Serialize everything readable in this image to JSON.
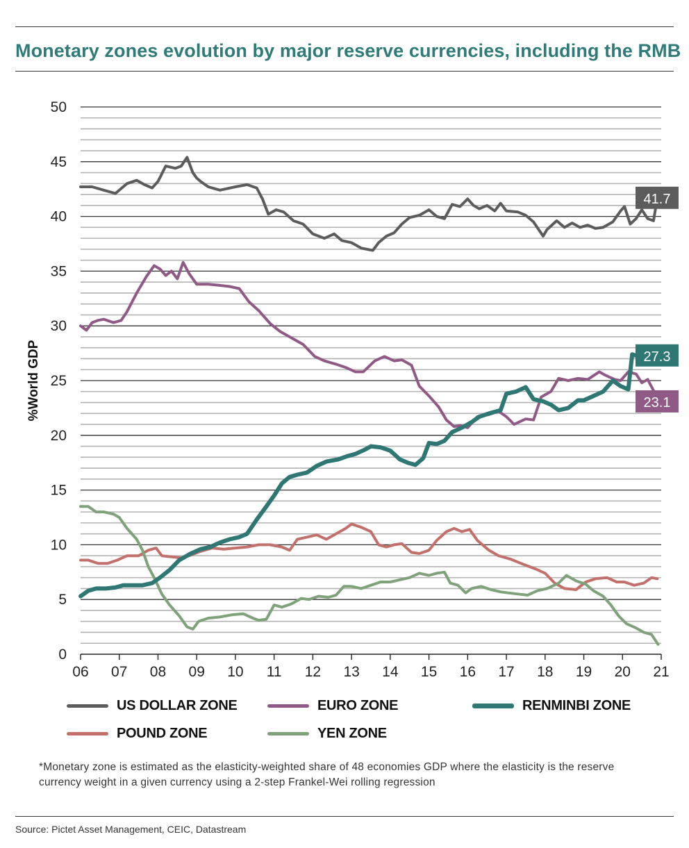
{
  "title": "Monetary zones evolution by major reserve currencies, including the RMB",
  "note": "*Monetary zone is estimated as the elasticity-weighted share of 48 economies GDP where the elasticity is the reserve currency weight in a given currency using a 2-step Frankel-Wei rolling regression",
  "source": "Source: Pictet Asset Management, CEIC, Datastream",
  "legend": [
    {
      "label": "US DOLLAR ZONE",
      "color": "#5c5c5c"
    },
    {
      "label": "EURO ZONE",
      "color": "#8f5a85"
    },
    {
      "label": "RENMINBI ZONE",
      "color": "#2e7773"
    },
    {
      "label": "POUND ZONE",
      "color": "#c2706b"
    },
    {
      "label": "YEN ZONE",
      "color": "#7fa27b"
    }
  ],
  "chart_data": {
    "type": "line",
    "title": "Monetary zones evolution by major reserve currencies, including the RMB",
    "xlabel": "",
    "ylabel": "%World GDP",
    "ylim": [
      0,
      50
    ],
    "xlim": [
      2006,
      2021
    ],
    "y_ticks": [
      "0",
      "5",
      "10",
      "15",
      "20",
      "25",
      "30",
      "35",
      "40",
      "45",
      "50"
    ],
    "x_ticks": [
      "06",
      "07",
      "08",
      "09",
      "10",
      "11",
      "12",
      "13",
      "14",
      "15",
      "16",
      "17",
      "18",
      "19",
      "20",
      "21"
    ],
    "grid": true,
    "series": [
      {
        "name": "US DOLLAR ZONE",
        "color": "#5c5c5c",
        "width": 4,
        "end_label": "41.7",
        "x": [
          2006.0,
          2006.3,
          2006.6,
          2006.9,
          2007.2,
          2007.45,
          2007.65,
          2007.85,
          2008.0,
          2008.2,
          2008.45,
          2008.6,
          2008.75,
          2008.9,
          2009.0,
          2009.1,
          2009.3,
          2009.6,
          2010.0,
          2010.3,
          2010.55,
          2010.7,
          2010.85,
          2011.05,
          2011.25,
          2011.5,
          2011.75,
          2012.0,
          2012.3,
          2012.55,
          2012.75,
          2013.0,
          2013.25,
          2013.55,
          2013.7,
          2013.9,
          2014.1,
          2014.3,
          2014.5,
          2014.75,
          2015.0,
          2015.2,
          2015.4,
          2015.6,
          2015.8,
          2016.0,
          2016.15,
          2016.3,
          2016.5,
          2016.7,
          2016.85,
          2017.0,
          2017.3,
          2017.5,
          2017.7,
          2017.95,
          2018.05,
          2018.3,
          2018.5,
          2018.7,
          2018.9,
          2019.1,
          2019.3,
          2019.5,
          2019.75,
          2019.95,
          2020.05,
          2020.2,
          2020.35,
          2020.5,
          2020.65,
          2020.8,
          2020.9
        ],
        "y": [
          42.7,
          42.7,
          42.4,
          42.1,
          43.0,
          43.3,
          42.9,
          42.6,
          43.2,
          44.6,
          44.4,
          44.6,
          45.4,
          44.0,
          43.5,
          43.2,
          42.7,
          42.4,
          42.7,
          42.9,
          42.6,
          41.6,
          40.2,
          40.6,
          40.4,
          39.6,
          39.3,
          38.4,
          38.0,
          38.4,
          37.8,
          37.6,
          37.1,
          36.9,
          37.6,
          38.2,
          38.5,
          39.3,
          39.9,
          40.1,
          40.6,
          40.0,
          39.8,
          41.1,
          40.9,
          41.6,
          41.0,
          40.7,
          41.0,
          40.5,
          41.2,
          40.5,
          40.4,
          40.1,
          39.5,
          38.2,
          38.8,
          39.6,
          39.0,
          39.4,
          39.0,
          39.2,
          38.9,
          39.0,
          39.5,
          40.5,
          40.9,
          39.3,
          39.8,
          40.6,
          39.8,
          39.6,
          41.7
        ]
      },
      {
        "name": "EURO ZONE",
        "color": "#8f5a85",
        "width": 4,
        "end_label": "23.1",
        "x": [
          2006.0,
          2006.15,
          2006.3,
          2006.45,
          2006.6,
          2006.85,
          2007.05,
          2007.2,
          2007.45,
          2007.7,
          2007.9,
          2008.05,
          2008.2,
          2008.35,
          2008.5,
          2008.65,
          2008.8,
          2009.0,
          2009.3,
          2009.6,
          2009.85,
          2010.1,
          2010.35,
          2010.6,
          2010.9,
          2011.15,
          2011.45,
          2011.75,
          2012.05,
          2012.3,
          2012.6,
          2012.85,
          2013.1,
          2013.3,
          2013.6,
          2013.85,
          2014.1,
          2014.3,
          2014.55,
          2014.75,
          2015.0,
          2015.25,
          2015.45,
          2015.65,
          2015.8,
          2016.0,
          2016.25,
          2016.55,
          2016.8,
          2017.0,
          2017.2,
          2017.5,
          2017.7,
          2017.9,
          2018.15,
          2018.35,
          2018.6,
          2018.85,
          2019.1,
          2019.4,
          2019.55,
          2019.8,
          2019.95,
          2020.15,
          2020.35,
          2020.5,
          2020.65,
          2020.8,
          2020.92
        ],
        "y": [
          30.0,
          29.6,
          30.3,
          30.5,
          30.6,
          30.3,
          30.5,
          31.3,
          33.0,
          34.5,
          35.5,
          35.2,
          34.6,
          35.0,
          34.3,
          35.8,
          34.8,
          33.8,
          33.8,
          33.7,
          33.6,
          33.4,
          32.2,
          31.4,
          30.2,
          29.5,
          28.9,
          28.3,
          27.2,
          26.8,
          26.5,
          26.2,
          25.8,
          25.8,
          26.8,
          27.2,
          26.8,
          26.9,
          26.4,
          24.5,
          23.6,
          22.6,
          21.4,
          20.8,
          20.9,
          20.7,
          21.7,
          21.9,
          22.2,
          21.7,
          21.0,
          21.5,
          21.4,
          23.5,
          24.0,
          25.2,
          25.0,
          25.2,
          25.1,
          25.8,
          25.5,
          25.1,
          25.0,
          25.8,
          25.6,
          24.8,
          25.1,
          24.1,
          23.1
        ]
      },
      {
        "name": "RENMINBI ZONE",
        "color": "#2e7773",
        "width": 6,
        "end_label": "27.3",
        "x": [
          2006.0,
          2006.2,
          2006.4,
          2006.65,
          2006.9,
          2007.1,
          2007.35,
          2007.6,
          2007.85,
          2008.05,
          2008.3,
          2008.55,
          2008.85,
          2009.1,
          2009.35,
          2009.6,
          2009.85,
          2010.1,
          2010.3,
          2010.55,
          2010.8,
          2011.0,
          2011.2,
          2011.4,
          2011.6,
          2011.85,
          2012.1,
          2012.35,
          2012.65,
          2012.9,
          2013.1,
          2013.35,
          2013.5,
          2013.75,
          2014.0,
          2014.25,
          2014.45,
          2014.65,
          2014.85,
          2015.0,
          2015.2,
          2015.4,
          2015.6,
          2015.85,
          2016.1,
          2016.3,
          2016.55,
          2016.85,
          2017.0,
          2017.25,
          2017.5,
          2017.7,
          2017.95,
          2018.15,
          2018.35,
          2018.6,
          2018.85,
          2019.0,
          2019.25,
          2019.5,
          2019.75,
          2019.95,
          2020.15,
          2020.25,
          2020.5,
          2020.7,
          2020.85,
          2020.95
        ],
        "y": [
          5.3,
          5.8,
          6.0,
          6.0,
          6.1,
          6.3,
          6.3,
          6.3,
          6.5,
          7.0,
          7.7,
          8.6,
          9.2,
          9.6,
          9.8,
          10.2,
          10.5,
          10.7,
          11.0,
          12.3,
          13.5,
          14.5,
          15.6,
          16.2,
          16.4,
          16.6,
          17.2,
          17.6,
          17.8,
          18.1,
          18.3,
          18.7,
          19.0,
          18.9,
          18.6,
          17.8,
          17.5,
          17.3,
          17.9,
          19.3,
          19.2,
          19.5,
          20.3,
          20.7,
          21.2,
          21.7,
          22.0,
          22.3,
          23.8,
          24.0,
          24.4,
          23.3,
          23.1,
          22.8,
          22.3,
          22.5,
          23.2,
          23.2,
          23.6,
          24.0,
          25.0,
          24.5,
          24.2,
          27.4,
          27.1,
          27.3,
          27.2,
          27.3
        ]
      },
      {
        "name": "POUND ZONE",
        "color": "#c2706b",
        "width": 4,
        "end_label": "",
        "x": [
          2006.0,
          2006.2,
          2006.45,
          2006.7,
          2006.95,
          2007.2,
          2007.5,
          2007.75,
          2007.95,
          2008.1,
          2008.35,
          2008.6,
          2008.8,
          2009.1,
          2009.4,
          2009.7,
          2010.0,
          2010.3,
          2010.6,
          2010.9,
          2011.2,
          2011.4,
          2011.6,
          2011.85,
          2012.1,
          2012.35,
          2012.6,
          2012.85,
          2013.0,
          2013.25,
          2013.5,
          2013.7,
          2013.9,
          2014.1,
          2014.3,
          2014.55,
          2014.75,
          2015.0,
          2015.2,
          2015.45,
          2015.65,
          2015.85,
          2016.05,
          2016.25,
          2016.55,
          2016.8,
          2017.1,
          2017.45,
          2017.75,
          2018.0,
          2018.25,
          2018.5,
          2018.8,
          2019.05,
          2019.3,
          2019.6,
          2019.85,
          2020.05,
          2020.3,
          2020.55,
          2020.75,
          2020.9
        ],
        "y": [
          8.6,
          8.6,
          8.3,
          8.3,
          8.6,
          9.0,
          9.0,
          9.5,
          9.7,
          9.0,
          8.9,
          8.8,
          9.0,
          9.4,
          9.7,
          9.6,
          9.7,
          9.8,
          10.0,
          10.0,
          9.8,
          9.5,
          10.5,
          10.7,
          10.9,
          10.5,
          11.0,
          11.5,
          11.9,
          11.6,
          11.2,
          10.0,
          9.8,
          10.0,
          10.1,
          9.3,
          9.2,
          9.5,
          10.4,
          11.2,
          11.5,
          11.2,
          11.4,
          10.4,
          9.5,
          9.0,
          8.7,
          8.2,
          7.8,
          7.4,
          6.5,
          6.0,
          5.9,
          6.6,
          6.9,
          7.0,
          6.6,
          6.6,
          6.3,
          6.5,
          7.0,
          6.9
        ]
      },
      {
        "name": "YEN ZONE",
        "color": "#7fa27b",
        "width": 4,
        "end_label": "",
        "x": [
          2006.0,
          2006.2,
          2006.4,
          2006.6,
          2006.85,
          2007.0,
          2007.2,
          2007.45,
          2007.6,
          2007.75,
          2007.9,
          2008.1,
          2008.3,
          2008.55,
          2008.75,
          2008.9,
          2009.05,
          2009.3,
          2009.6,
          2009.9,
          2010.2,
          2010.45,
          2010.6,
          2010.8,
          2011.0,
          2011.2,
          2011.45,
          2011.7,
          2011.9,
          2012.15,
          2012.4,
          2012.6,
          2012.8,
          2013.0,
          2013.25,
          2013.5,
          2013.75,
          2014.0,
          2014.25,
          2014.5,
          2014.75,
          2015.0,
          2015.2,
          2015.4,
          2015.55,
          2015.75,
          2015.95,
          2016.1,
          2016.35,
          2016.6,
          2016.85,
          2017.05,
          2017.3,
          2017.55,
          2017.8,
          2018.05,
          2018.35,
          2018.55,
          2018.8,
          2019.05,
          2019.25,
          2019.5,
          2019.7,
          2019.9,
          2020.1,
          2020.35,
          2020.55,
          2020.75,
          2020.92
        ],
        "y": [
          13.5,
          13.5,
          13.0,
          13.0,
          12.8,
          12.5,
          11.5,
          10.5,
          9.5,
          8.0,
          7.0,
          5.5,
          4.5,
          3.5,
          2.5,
          2.3,
          3.0,
          3.3,
          3.4,
          3.6,
          3.7,
          3.3,
          3.1,
          3.2,
          4.5,
          4.3,
          4.6,
          5.1,
          5.0,
          5.3,
          5.2,
          5.4,
          6.2,
          6.2,
          6.0,
          6.3,
          6.6,
          6.6,
          6.8,
          7.0,
          7.4,
          7.2,
          7.4,
          7.5,
          6.5,
          6.3,
          5.6,
          6.0,
          6.2,
          5.9,
          5.7,
          5.6,
          5.5,
          5.4,
          5.8,
          6.0,
          6.5,
          7.2,
          6.7,
          6.4,
          5.8,
          5.3,
          4.5,
          3.5,
          2.8,
          2.4,
          2.0,
          1.8,
          0.9
        ]
      }
    ]
  }
}
